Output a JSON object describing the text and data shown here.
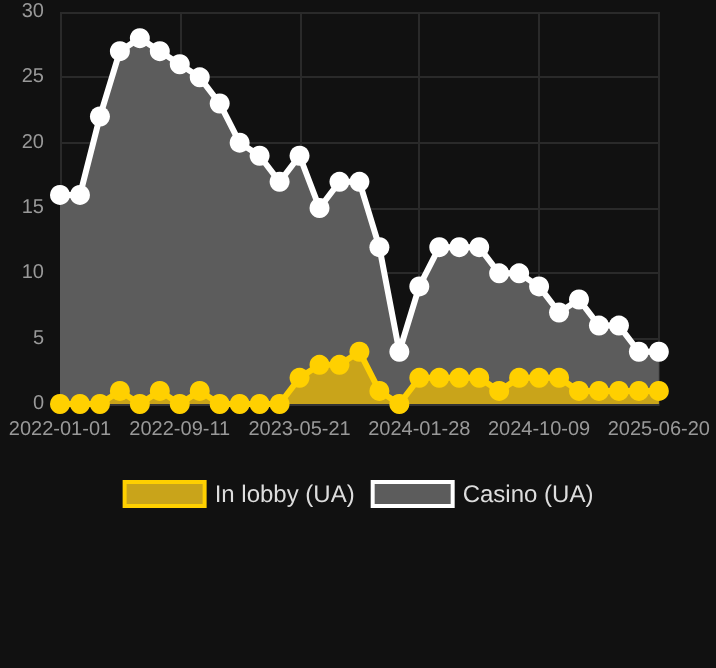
{
  "chart_data": {
    "type": "area",
    "categories": [
      "2022-01-01",
      null,
      null,
      null,
      null,
      null,
      "2022-09-11",
      null,
      null,
      null,
      null,
      null,
      "2023-05-21",
      null,
      null,
      null,
      null,
      null,
      "2024-01-28",
      null,
      null,
      null,
      null,
      null,
      "2024-10-09",
      null,
      null,
      null,
      null,
      null,
      "2025-06-20"
    ],
    "series": [
      {
        "name": "In lobby (UA)",
        "color": "#ffd000",
        "values": [
          0,
          0,
          0,
          1,
          0,
          1,
          0,
          1,
          0,
          0,
          0,
          0,
          2,
          3,
          3,
          4,
          1,
          0,
          2,
          2,
          2,
          2,
          1,
          2,
          2,
          2,
          1,
          1,
          1,
          1,
          1
        ]
      },
      {
        "name": "Casino (UA)",
        "color": "#ffffff",
        "values": [
          16,
          16,
          22,
          27,
          28,
          27,
          26,
          25,
          23,
          20,
          19,
          17,
          19,
          15,
          17,
          17,
          12,
          4,
          9,
          12,
          12,
          12,
          10,
          10,
          9,
          7,
          8,
          6,
          6,
          4,
          4
        ]
      }
    ],
    "ylim": [
      0,
      30
    ],
    "yticks": [
      0,
      5,
      10,
      15,
      20,
      25,
      30
    ],
    "grid": true,
    "legend": "bottom",
    "marker": "circle"
  }
}
